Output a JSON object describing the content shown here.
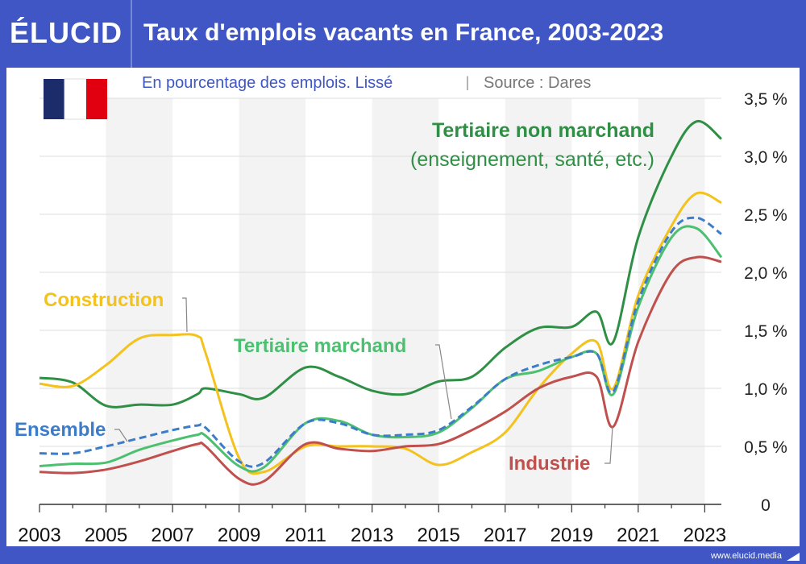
{
  "header": {
    "logo": "ÉLUCID",
    "title": "Taux d'emplois vacants en France, 2003-2023"
  },
  "footer": {
    "url": "www.elucid.media"
  },
  "colors": {
    "ensemble": "#3d7cc9",
    "construction": "#f4c21c",
    "tertiaire_marchand": "#4cc070",
    "tertiaire_non_marchand": "#2e8f45",
    "industrie": "#c0504d"
  },
  "chart_data": {
    "type": "line",
    "subtitle": "En pourcentage des emplois. Lissé",
    "source": "Source : Dares",
    "ylim": [
      0,
      3.5
    ],
    "yticks": [
      "0",
      "0,5 %",
      "1,0 %",
      "1,5 %",
      "2,0 %",
      "2,5 %",
      "3,0 %",
      "3,5 %"
    ],
    "xticks": [
      "2003",
      "2005",
      "2007",
      "2009",
      "2011",
      "2013",
      "2015",
      "2017",
      "2019",
      "2021",
      "2023"
    ],
    "x": [
      2003,
      2004,
      2005,
      2006,
      2007,
      2007.75,
      2008,
      2009,
      2009.75,
      2011,
      2012,
      2013,
      2014,
      2015,
      2016,
      2017,
      2018,
      2019,
      2019.75,
      2020.25,
      2021,
      2022,
      2022.75,
      2023.5
    ],
    "series": [
      {
        "key": "tertiaire_non_marchand",
        "name": "Tertiaire non marchand",
        "name2": "(enseignement, santé, etc.)",
        "values": [
          1.09,
          1.05,
          0.85,
          0.86,
          0.86,
          0.95,
          1.0,
          0.95,
          0.92,
          1.18,
          1.1,
          0.98,
          0.95,
          1.06,
          1.1,
          1.35,
          1.52,
          1.53,
          1.66,
          1.4,
          2.3,
          3.0,
          3.3,
          3.15
        ]
      },
      {
        "key": "construction",
        "name": "Construction",
        "values": [
          1.04,
          1.02,
          1.2,
          1.43,
          1.46,
          1.45,
          1.3,
          0.4,
          0.28,
          0.5,
          0.5,
          0.5,
          0.48,
          0.34,
          0.45,
          0.62,
          1.0,
          1.3,
          1.4,
          1.0,
          1.8,
          2.4,
          2.68,
          2.6
        ]
      },
      {
        "key": "tertiaire_marchand",
        "name": "Tertiaire marchand",
        "values": [
          0.33,
          0.35,
          0.36,
          0.47,
          0.55,
          0.6,
          0.59,
          0.33,
          0.32,
          0.7,
          0.72,
          0.6,
          0.58,
          0.62,
          0.83,
          1.08,
          1.15,
          1.27,
          1.3,
          0.95,
          1.7,
          2.3,
          2.38,
          2.13
        ]
      },
      {
        "key": "industrie",
        "name": "Industrie",
        "values": [
          0.28,
          0.27,
          0.3,
          0.37,
          0.46,
          0.52,
          0.5,
          0.22,
          0.2,
          0.52,
          0.48,
          0.46,
          0.5,
          0.52,
          0.64,
          0.8,
          1.0,
          1.1,
          1.1,
          0.67,
          1.4,
          2.0,
          2.13,
          2.09
        ]
      },
      {
        "key": "ensemble",
        "name": "Ensemble",
        "dashed": true,
        "values": [
          0.44,
          0.44,
          0.5,
          0.57,
          0.64,
          0.68,
          0.66,
          0.37,
          0.36,
          0.7,
          0.7,
          0.6,
          0.6,
          0.64,
          0.84,
          1.08,
          1.2,
          1.27,
          1.3,
          0.97,
          1.75,
          2.35,
          2.47,
          2.33
        ]
      }
    ]
  }
}
